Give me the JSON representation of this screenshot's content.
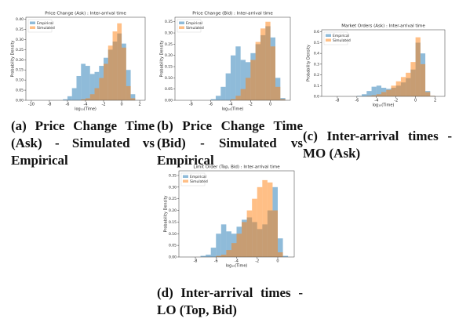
{
  "chart_data": [
    {
      "type": "histogram",
      "title": "Price Change (Ask) : Inter-arrival time",
      "xlabel": "log₁₀(Time)",
      "ylabel": "Probability Density",
      "caption": "(a) Price Change Time (Ask) - Simulated vs Empirical",
      "bins": [
        -10,
        -9.5,
        -9,
        -8.5,
        -8,
        -7.5,
        -7,
        -6.5,
        -6,
        -5.5,
        -5,
        -4.5,
        -4,
        -3.5,
        -3,
        -2.5,
        -2,
        -1.5,
        -1,
        -0.5,
        0,
        0.5,
        1,
        1.5,
        2
      ],
      "series": [
        {
          "name": "Empirical",
          "color": "#1f77b4",
          "values": [
            0,
            0,
            0,
            0,
            0,
            0,
            0,
            0.005,
            0.02,
            0.06,
            0.12,
            0.18,
            0.17,
            0.13,
            0.14,
            0.17,
            0.21,
            0.25,
            0.29,
            0.33,
            0.28,
            0.15,
            0.03,
            0
          ]
        },
        {
          "name": "Simulated",
          "color": "#ff7f0e",
          "values": [
            0,
            0,
            0,
            0,
            0,
            0,
            0,
            0,
            0,
            0,
            0,
            0.005,
            0.01,
            0.03,
            0.06,
            0.11,
            0.18,
            0.27,
            0.34,
            0.38,
            0.26,
            0.07,
            0.01,
            0
          ]
        }
      ],
      "xlim": [
        -10.6,
        2.6
      ],
      "xticks": [
        -10,
        -8,
        -6,
        -4,
        -2,
        0,
        2
      ],
      "ylim": [
        0,
        0.41
      ],
      "yticks": [
        {
          "value": 0,
          "label": "0.00"
        },
        0.05,
        {
          "value": 0.1,
          "label": "0.10"
        },
        0.15,
        {
          "value": 0.2,
          "label": "0.20"
        },
        0.25,
        {
          "value": 0.3,
          "label": "0.30"
        },
        0.35,
        {
          "value": 0.4,
          "label": "0.40"
        }
      ],
      "legend": "upper left"
    },
    {
      "type": "histogram",
      "title": "Price Change (Bid) : Inter-arrival time",
      "xlabel": "log₁₀(Time)",
      "ylabel": "Probability Density",
      "caption": "(b) Price Change Time (Bid) - Simulated vs Empirical",
      "bins": [
        -9,
        -8.5,
        -8,
        -7.5,
        -7,
        -6.5,
        -6,
        -5.5,
        -5,
        -4.5,
        -4,
        -3.5,
        -3,
        -2.5,
        -2,
        -1.5,
        -1,
        -0.5,
        0,
        0.5,
        1,
        1.5
      ],
      "series": [
        {
          "name": "Empirical",
          "color": "#1f77b4",
          "values": [
            0,
            0,
            0,
            0,
            0,
            0,
            0.005,
            0.02,
            0.06,
            0.12,
            0.2,
            0.24,
            0.18,
            0.17,
            0.21,
            0.25,
            0.29,
            0.33,
            0.28,
            0.1,
            0.01
          ]
        },
        {
          "name": "Simulated",
          "color": "#ff7f0e",
          "values": [
            0,
            0,
            0,
            0,
            0,
            0,
            0,
            0,
            0,
            0,
            0.005,
            0.02,
            0.05,
            0.1,
            0.18,
            0.26,
            0.32,
            0.35,
            0.24,
            0.06,
            0.005
          ]
        }
      ],
      "xlim": [
        -9.6,
        2
      ],
      "xticks": [
        -8,
        -6,
        -4,
        -2,
        0
      ],
      "ylim": [
        0,
        0.37
      ],
      "yticks": [
        {
          "value": 0,
          "label": "0.00"
        },
        0.05,
        {
          "value": 0.1,
          "label": "0.10"
        },
        0.15,
        {
          "value": 0.2,
          "label": "0.20"
        },
        0.25,
        {
          "value": 0.3,
          "label": "0.30"
        },
        0.35
      ],
      "legend": "upper left"
    },
    {
      "type": "histogram",
      "title": "Market Orders (Ask) : Inter-arrival time",
      "xlabel": "log₁₀(Time)",
      "ylabel": "Probability Density",
      "caption": "(c) Inter-arrival times - MO (Ask)",
      "bins": [
        -9,
        -8.5,
        -8,
        -7.5,
        -7,
        -6.5,
        -6,
        -5.5,
        -5,
        -4.5,
        -4,
        -3.5,
        -3,
        -2.5,
        -2,
        -1.5,
        -1,
        -0.5,
        0,
        0.5,
        1,
        1.5,
        2,
        2.5
      ],
      "series": [
        {
          "name": "Empirical",
          "color": "#1f77b4",
          "values": [
            0,
            0,
            0,
            0,
            0,
            0,
            0.005,
            0.02,
            0.05,
            0.09,
            0.1,
            0.08,
            0.07,
            0.08,
            0.1,
            0.13,
            0.17,
            0.25,
            0.5,
            0.4,
            0.05,
            0.005,
            0
          ]
        },
        {
          "name": "Simulated",
          "color": "#ff7f0e",
          "values": [
            0,
            0,
            0,
            0,
            0,
            0,
            0,
            0,
            0.005,
            0.01,
            0.02,
            0.04,
            0.06,
            0.1,
            0.14,
            0.18,
            0.22,
            0.32,
            0.55,
            0.3,
            0.04,
            0.005,
            0
          ]
        }
      ],
      "xlim": [
        -9.6,
        3
      ],
      "xticks": [
        -8,
        -6,
        -4,
        -2,
        0,
        2
      ],
      "ylim": [
        0,
        0.62
      ],
      "yticks": [
        {
          "value": 0,
          "label": "0.0"
        },
        0.1,
        0.2,
        0.3,
        0.4,
        0.5,
        0.6
      ],
      "legend": "upper left"
    },
    {
      "type": "histogram",
      "title": "Limit Order (Top, Bid) : Inter-arrival time",
      "xlabel": "log₁₀(Time)",
      "ylabel": "Probability Density",
      "caption": "(d) Inter-arrival times - LO (Top, Bid)",
      "bins": [
        -9,
        -8.5,
        -8,
        -7.5,
        -7,
        -6.5,
        -6,
        -5.5,
        -5,
        -4.5,
        -4,
        -3.5,
        -3,
        -2.5,
        -2,
        -1.5,
        -1,
        -0.5,
        0,
        0.5,
        1
      ],
      "series": [
        {
          "name": "Empirical",
          "color": "#1f77b4",
          "values": [
            0,
            0,
            0,
            0.005,
            0.01,
            0.04,
            0.1,
            0.14,
            0.11,
            0.1,
            0.13,
            0.16,
            0.17,
            0.15,
            0.12,
            0.14,
            0.2,
            0.3,
            0.08,
            0.005
          ]
        },
        {
          "name": "Simulated",
          "color": "#ff7f0e",
          "values": [
            0,
            0,
            0,
            0,
            0,
            0,
            0.005,
            0.01,
            0.03,
            0.06,
            0.1,
            0.15,
            0.2,
            0.25,
            0.3,
            0.33,
            0.32,
            0.2,
            0.02,
            0
          ]
        }
      ],
      "xlim": [
        -9.6,
        1.6
      ],
      "xticks": [
        -8,
        -6,
        -4,
        -2,
        0
      ],
      "ylim": [
        0,
        0.37
      ],
      "yticks": [
        {
          "value": 0,
          "label": "0.00"
        },
        0.05,
        {
          "value": 0.1,
          "label": "0.10"
        },
        0.15,
        {
          "value": 0.2,
          "label": "0.20"
        },
        0.25,
        {
          "value": 0.3,
          "label": "0.30"
        },
        0.35
      ],
      "legend": "upper left"
    }
  ]
}
